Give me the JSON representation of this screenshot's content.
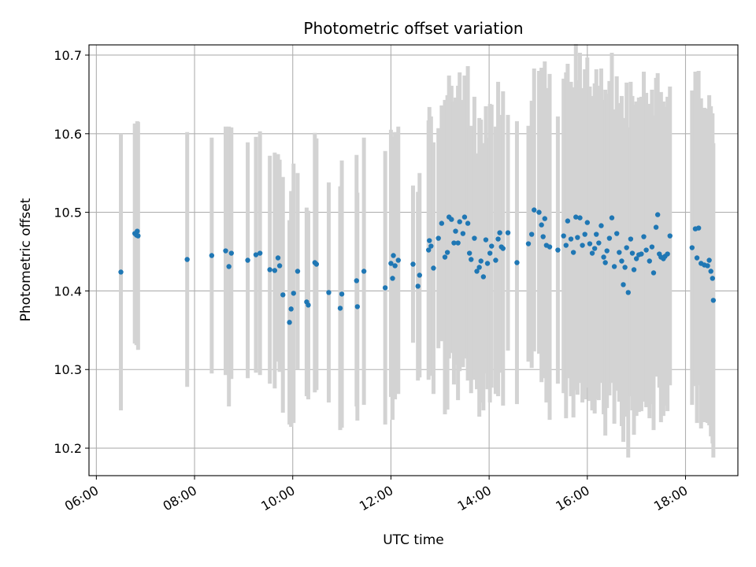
{
  "chart_data": {
    "type": "scatter",
    "title": "Photometric offset variation",
    "xlabel": "UTC time",
    "ylabel": "Photometric offset",
    "xlim": [
      "05:51",
      "19:04"
    ],
    "ylim": [
      10.165,
      10.713
    ],
    "xticks": [
      "06:00",
      "08:00",
      "10:00",
      "12:00",
      "14:00",
      "16:00",
      "18:00"
    ],
    "yticks": [
      "10.2",
      "10.3",
      "10.4",
      "10.5",
      "10.6",
      "10.7"
    ],
    "grid": true,
    "colors": {
      "points": "#1f77b4",
      "errorbars": "#d3d3d3",
      "grid": "#b0b0b0"
    },
    "series": [
      {
        "values": [
          [
            "06:30",
            10.424,
            0.176
          ],
          [
            "06:47",
            10.473,
            0.14
          ],
          [
            "06:49",
            10.471,
            0.14
          ],
          [
            "06:50",
            10.476,
            0.14
          ],
          [
            "06:51",
            10.47,
            0.145
          ],
          [
            "07:51",
            10.44,
            0.162
          ],
          [
            "08:21",
            10.445,
            0.15
          ],
          [
            "08:38",
            10.451,
            0.158
          ],
          [
            "08:42",
            10.431,
            0.178
          ],
          [
            "08:45",
            10.448,
            0.16
          ],
          [
            "09:05",
            10.439,
            0.15
          ],
          [
            "09:15",
            10.446,
            0.15
          ],
          [
            "09:20",
            10.448,
            0.155
          ],
          [
            "09:32",
            10.427,
            0.145
          ],
          [
            "09:38",
            10.426,
            0.15
          ],
          [
            "09:42",
            10.442,
            0.132
          ],
          [
            "09:44",
            10.432,
            0.135
          ],
          [
            "09:48",
            10.395,
            0.15
          ],
          [
            "09:56",
            10.36,
            0.13
          ],
          [
            "09:58",
            10.377,
            0.15
          ],
          [
            "10:01",
            10.397,
            0.165
          ],
          [
            "10:06",
            10.425,
            0.125
          ],
          [
            "10:17",
            10.386,
            0.12
          ],
          [
            "10:19",
            10.382,
            0.12
          ],
          [
            "10:27",
            10.436,
            0.165
          ],
          [
            "10:29",
            10.434,
            0.16
          ],
          [
            "10:44",
            10.398,
            0.14
          ],
          [
            "10:58",
            10.378,
            0.155
          ],
          [
            "11:00",
            10.396,
            0.17
          ],
          [
            "11:18",
            10.413,
            0.16
          ],
          [
            "11:19",
            10.38,
            0.145
          ],
          [
            "11:27",
            10.425,
            0.17
          ],
          [
            "11:53",
            10.404,
            0.174
          ],
          [
            "12:00",
            10.435,
            0.17
          ],
          [
            "12:02",
            10.416,
            0.18
          ],
          [
            "12:03",
            10.445,
            0.14
          ],
          [
            "12:05",
            10.432,
            0.17
          ],
          [
            "12:09",
            10.439,
            0.17
          ],
          [
            "12:27",
            10.434,
            0.1
          ],
          [
            "12:33",
            10.406,
            0.12
          ],
          [
            "12:35",
            10.42,
            0.13
          ],
          [
            "12:46",
            10.452,
            0.165
          ],
          [
            "12:47",
            10.464,
            0.17
          ],
          [
            "12:49",
            10.457,
            0.165
          ],
          [
            "12:52",
            10.429,
            0.16
          ],
          [
            "12:58",
            10.467,
            0.14
          ],
          [
            "13:02",
            10.486,
            0.15
          ],
          [
            "13:06",
            10.443,
            0.2
          ],
          [
            "13:09",
            10.449,
            0.2
          ],
          [
            "13:11",
            10.494,
            0.18
          ],
          [
            "13:14",
            10.491,
            0.17
          ],
          [
            "13:17",
            10.461,
            0.18
          ],
          [
            "13:19",
            10.476,
            0.17
          ],
          [
            "13:22",
            10.461,
            0.2
          ],
          [
            "13:24",
            10.488,
            0.19
          ],
          [
            "13:28",
            10.473,
            0.17
          ],
          [
            "13:30",
            10.494,
            0.18
          ],
          [
            "13:34",
            10.486,
            0.2
          ],
          [
            "13:36",
            10.448,
            0.16
          ],
          [
            "13:38",
            10.44,
            0.17
          ],
          [
            "13:42",
            10.467,
            0.18
          ],
          [
            "13:45",
            10.425,
            0.15
          ],
          [
            "13:48",
            10.43,
            0.19
          ],
          [
            "13:50",
            10.438,
            0.18
          ],
          [
            "13:53",
            10.418,
            0.17
          ],
          [
            "13:56",
            10.465,
            0.17
          ],
          [
            "13:58",
            10.435,
            0.16
          ],
          [
            "14:01",
            10.448,
            0.19
          ],
          [
            "14:03",
            10.457,
            0.18
          ],
          [
            "14:08",
            10.439,
            0.17
          ],
          [
            "14:11",
            10.466,
            0.2
          ],
          [
            "14:13",
            10.474,
            0.15
          ],
          [
            "14:15",
            10.456,
            0.16
          ],
          [
            "14:17",
            10.454,
            0.2
          ],
          [
            "14:23",
            10.474,
            0.15
          ],
          [
            "14:34",
            10.436,
            0.18
          ],
          [
            "14:48",
            10.46,
            0.15
          ],
          [
            "14:52",
            10.472,
            0.17
          ],
          [
            "14:55",
            10.503,
            0.18
          ],
          [
            "15:01",
            10.5,
            0.18
          ],
          [
            "15:04",
            10.484,
            0.2
          ],
          [
            "15:06",
            10.469,
            0.18
          ],
          [
            "15:08",
            10.492,
            0.2
          ],
          [
            "15:10",
            10.458,
            0.2
          ],
          [
            "15:14",
            10.456,
            0.22
          ],
          [
            "15:24",
            10.452,
            0.17
          ],
          [
            "15:31",
            10.47,
            0.2
          ],
          [
            "15:34",
            10.458,
            0.22
          ],
          [
            "15:36",
            10.489,
            0.2
          ],
          [
            "15:40",
            10.466,
            0.2
          ],
          [
            "15:43",
            10.449,
            0.21
          ],
          [
            "15:46",
            10.494,
            0.22
          ],
          [
            "15:48",
            10.468,
            0.2
          ],
          [
            "15:51",
            10.493,
            0.21
          ],
          [
            "15:54",
            10.458,
            0.2
          ],
          [
            "15:57",
            10.472,
            0.21
          ],
          [
            "16:00",
            10.487,
            0.21
          ],
          [
            "16:03",
            10.46,
            0.2
          ],
          [
            "16:06",
            10.448,
            0.2
          ],
          [
            "16:09",
            10.454,
            0.21
          ],
          [
            "16:11",
            10.472,
            0.21
          ],
          [
            "16:14",
            10.461,
            0.2
          ],
          [
            "16:17",
            10.483,
            0.2
          ],
          [
            "16:20",
            10.443,
            0.2
          ],
          [
            "16:22",
            10.436,
            0.22
          ],
          [
            "16:24",
            10.451,
            0.2
          ],
          [
            "16:27",
            10.467,
            0.2
          ],
          [
            "16:30",
            10.493,
            0.21
          ],
          [
            "16:33",
            10.431,
            0.2
          ],
          [
            "16:36",
            10.473,
            0.2
          ],
          [
            "16:39",
            10.449,
            0.19
          ],
          [
            "16:42",
            10.438,
            0.21
          ],
          [
            "16:44",
            10.408,
            0.2
          ],
          [
            "16:46",
            10.43,
            0.19
          ],
          [
            "16:48",
            10.455,
            0.21
          ],
          [
            "16:50",
            10.398,
            0.21
          ],
          [
            "16:53",
            10.466,
            0.2
          ],
          [
            "16:55",
            10.448,
            0.2
          ],
          [
            "16:57",
            10.427,
            0.21
          ],
          [
            "17:00",
            10.441,
            0.2
          ],
          [
            "17:03",
            10.446,
            0.2
          ],
          [
            "17:06",
            10.447,
            0.2
          ],
          [
            "17:09",
            10.469,
            0.21
          ],
          [
            "17:12",
            10.452,
            0.2
          ],
          [
            "17:16",
            10.438,
            0.2
          ],
          [
            "17:19",
            10.456,
            0.2
          ],
          [
            "17:21",
            10.423,
            0.2
          ],
          [
            "17:24",
            10.481,
            0.19
          ],
          [
            "17:26",
            10.497,
            0.18
          ],
          [
            "17:28",
            10.447,
            0.17
          ],
          [
            "17:30",
            10.443,
            0.21
          ],
          [
            "17:33",
            10.441,
            0.2
          ],
          [
            "17:35",
            10.444,
            0.19
          ],
          [
            "17:38",
            10.447,
            0.2
          ],
          [
            "17:41",
            10.47,
            0.19
          ],
          [
            "18:08",
            10.455,
            0.2
          ],
          [
            "18:12",
            10.479,
            0.2
          ],
          [
            "18:14",
            10.442,
            0.21
          ],
          [
            "18:16",
            10.48,
            0.2
          ],
          [
            "18:19",
            10.435,
            0.21
          ],
          [
            "18:23",
            10.433,
            0.2
          ],
          [
            "18:27",
            10.432,
            0.2
          ],
          [
            "18:29",
            10.439,
            0.21
          ],
          [
            "18:31",
            10.425,
            0.21
          ],
          [
            "18:33",
            10.416,
            0.21
          ],
          [
            "18:34",
            10.388,
            0.2
          ]
        ]
      }
    ]
  }
}
